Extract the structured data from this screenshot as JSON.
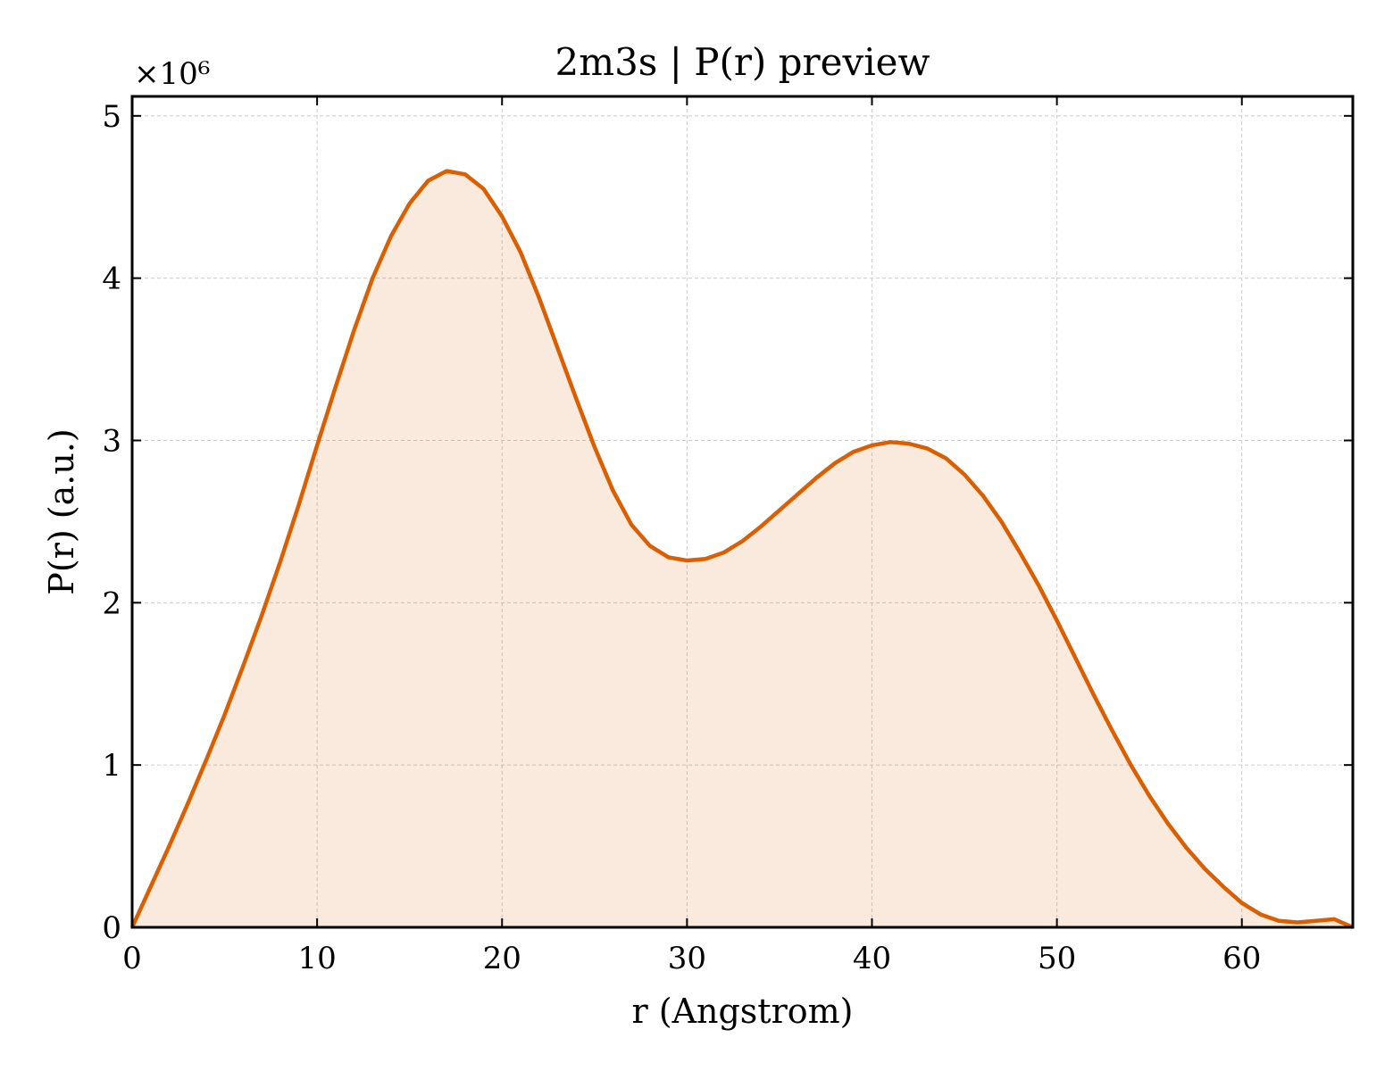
{
  "chart_data": {
    "type": "area",
    "title": "2m3s | P(r) preview",
    "xlabel": "r (Angstrom)",
    "ylabel": "P(r) (a.u.)",
    "y_multiplier": "×10⁶",
    "xlim": [
      0,
      66
    ],
    "ylim": [
      0,
      5.12
    ],
    "x_ticks": [
      0,
      10,
      20,
      30,
      40,
      50,
      60
    ],
    "y_ticks": [
      0,
      1,
      2,
      3,
      4,
      5
    ],
    "grid": true,
    "line_color": "#d95f02",
    "fill_color": "#d95f02",
    "fill_opacity": 0.13,
    "x": [
      0,
      1,
      2,
      3,
      4,
      5,
      6,
      7,
      8,
      9,
      10,
      11,
      12,
      13,
      14,
      15,
      16,
      17,
      18,
      19,
      20,
      21,
      22,
      23,
      24,
      25,
      26,
      27,
      28,
      29,
      30,
      31,
      32,
      33,
      34,
      35,
      36,
      37,
      38,
      39,
      40,
      41,
      42,
      43,
      44,
      45,
      46,
      47,
      48,
      49,
      50,
      51,
      52,
      53,
      54,
      55,
      56,
      57,
      58,
      59,
      60,
      61,
      62,
      63,
      64,
      65,
      66
    ],
    "y": [
      0,
      0.25,
      0.5,
      0.76,
      1.03,
      1.31,
      1.61,
      1.92,
      2.25,
      2.6,
      2.97,
      3.33,
      3.68,
      4.0,
      4.26,
      4.46,
      4.6,
      4.66,
      4.64,
      4.55,
      4.38,
      4.16,
      3.88,
      3.57,
      3.26,
      2.96,
      2.69,
      2.48,
      2.35,
      2.28,
      2.26,
      2.27,
      2.31,
      2.38,
      2.47,
      2.57,
      2.67,
      2.77,
      2.86,
      2.93,
      2.97,
      2.99,
      2.98,
      2.95,
      2.89,
      2.79,
      2.66,
      2.5,
      2.31,
      2.11,
      1.89,
      1.66,
      1.43,
      1.21,
      1.0,
      0.81,
      0.64,
      0.49,
      0.36,
      0.25,
      0.15,
      0.08,
      0.04,
      0.03,
      0.04,
      0.05,
      0.0
    ]
  }
}
